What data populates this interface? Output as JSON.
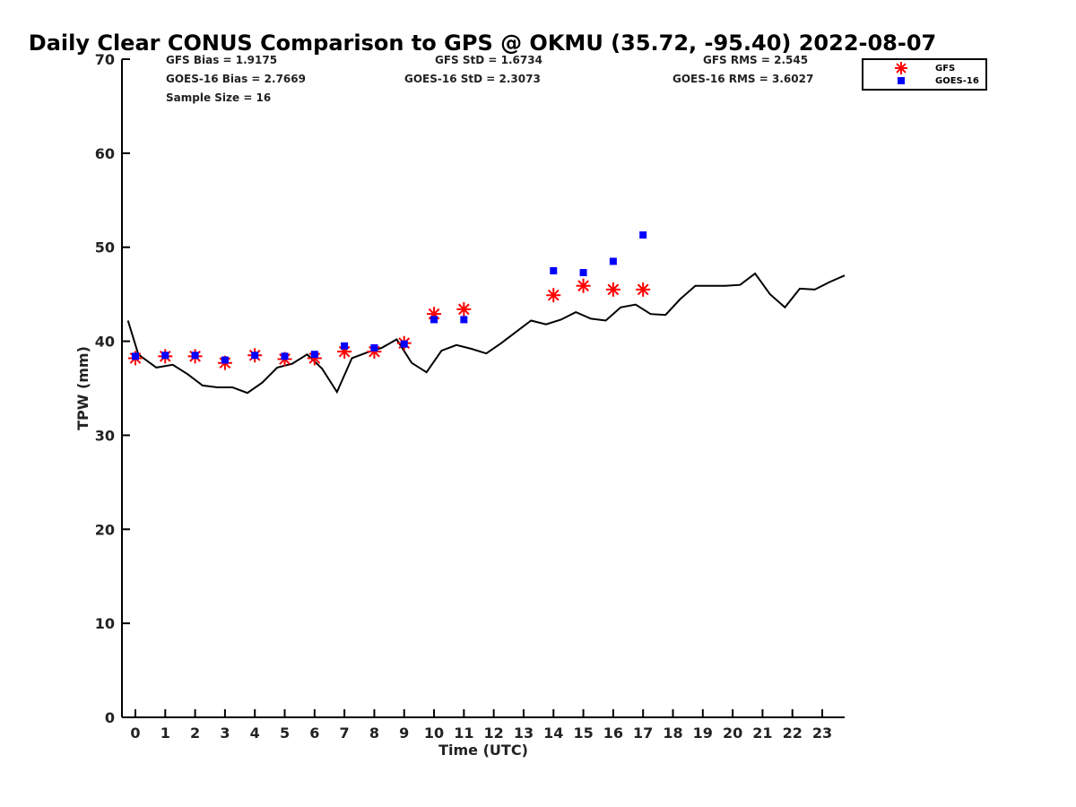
{
  "chart_data": {
    "type": "scatter",
    "title": "Daily Clear CONUS Comparison to GPS @ OKMU (35.72, -95.40) 2022-08-07",
    "xlabel": "Time (UTC)",
    "ylabel": "TPW (mm)",
    "xlim": [
      -0.45,
      23.75
    ],
    "ylim": [
      0,
      70
    ],
    "xticks": [
      0,
      1,
      2,
      3,
      4,
      5,
      6,
      7,
      8,
      9,
      10,
      11,
      12,
      13,
      14,
      15,
      16,
      17,
      18,
      19,
      20,
      21,
      22,
      23
    ],
    "yticks": [
      0,
      10,
      20,
      30,
      40,
      50,
      60,
      70
    ],
    "grid": false,
    "legend_position": "top-right",
    "stats": {
      "gfs_bias": "GFS Bias = 1.9175",
      "goes_bias": "GOES-16 Bias = 2.7669",
      "sample_size": "Sample Size = 16",
      "gfs_std": "GFS StD = 1.6734",
      "goes_std": "GOES-16 StD = 2.3073",
      "gfs_rms": "GFS RMS = 2.545",
      "goes_rms": "GOES-16 RMS = 3.6027"
    },
    "series": [
      {
        "name": "GPS",
        "kind": "line",
        "color": "#000000",
        "x": [
          -0.25,
          0.1,
          0.7,
          1.25,
          1.75,
          2.25,
          2.75,
          3.25,
          3.75,
          4.25,
          4.75,
          5.25,
          5.75,
          6.25,
          6.75,
          7.25,
          7.75,
          8.25,
          8.75,
          9.25,
          9.75,
          10.25,
          10.75,
          11.25,
          11.75,
          12.25,
          12.75,
          13.25,
          13.75,
          14.25,
          14.75,
          15.25,
          15.75,
          16.25,
          16.75,
          17.25,
          17.75,
          18.25,
          18.75,
          19.25,
          19.75,
          20.25,
          20.75,
          21.25,
          21.75,
          22.25,
          22.75,
          23.25,
          23.75
        ],
        "y": [
          42.2,
          38.6,
          37.2,
          37.5,
          36.5,
          35.3,
          35.1,
          35.1,
          34.5,
          35.6,
          37.2,
          37.6,
          38.6,
          37.1,
          34.6,
          38.2,
          38.8,
          39.3,
          40.2,
          37.7,
          36.7,
          39.0,
          39.6,
          39.2,
          38.7,
          39.8,
          41.0,
          42.2,
          41.8,
          42.3,
          43.1,
          42.4,
          42.2,
          43.6,
          43.9,
          42.9,
          42.8,
          44.5,
          45.9,
          45.9,
          45.9,
          46.0,
          47.2,
          45.0,
          43.6,
          45.6,
          45.5,
          46.3,
          47.0
        ]
      },
      {
        "name": "GFS",
        "kind": "marker",
        "marker": "asterisk",
        "color": "#ff0000",
        "x": [
          0,
          1,
          2,
          3,
          4,
          5,
          6,
          7,
          8,
          9,
          10,
          11,
          14,
          15,
          16,
          17
        ],
        "y": [
          38.2,
          38.4,
          38.4,
          37.7,
          38.5,
          38.1,
          38.2,
          38.9,
          38.9,
          39.8,
          42.9,
          43.4,
          44.9,
          45.9,
          45.5,
          45.5
        ]
      },
      {
        "name": "GOES-16",
        "kind": "marker",
        "marker": "square",
        "color": "#0000ff",
        "x": [
          0,
          1,
          2,
          3,
          4,
          5,
          6,
          7,
          8,
          9,
          10,
          11,
          14,
          15,
          16,
          17
        ],
        "y": [
          38.4,
          38.5,
          38.5,
          38.0,
          38.5,
          38.4,
          38.6,
          39.5,
          39.3,
          39.7,
          42.3,
          42.3,
          47.5,
          47.3,
          48.5,
          51.3
        ]
      }
    ]
  }
}
